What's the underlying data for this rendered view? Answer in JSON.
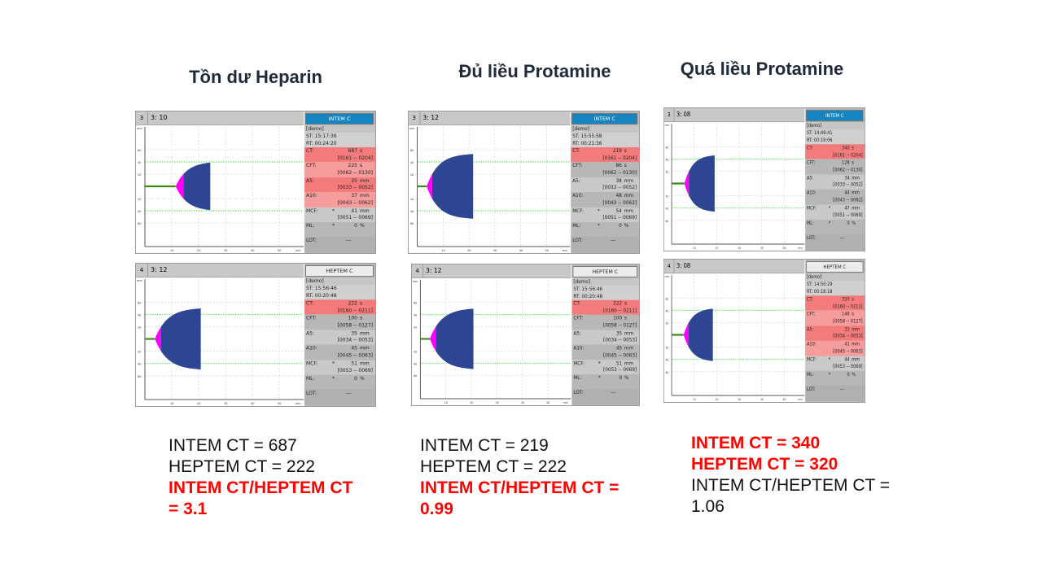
{
  "colors": {
    "highlight": "#ff0000",
    "intem_header": "#1485c0",
    "abnormal": "#f47b7b",
    "curve_blue": "#2e4593",
    "curve_magenta": "#ff00ff",
    "baseline_green": "#3b8a1c",
    "ref_line": "#33dd33"
  },
  "axis": {
    "y_unit": "mm",
    "y_ticks": [
      "60",
      "40",
      "20",
      "20",
      "40",
      "60"
    ],
    "x_ticks": [
      "10",
      "20",
      "30",
      "40",
      "50"
    ],
    "x_unit": "min"
  },
  "columns": [
    {
      "title": "Tồn dư Heparin",
      "panels": [
        {
          "channel": "3",
          "run": "3: 10",
          "test": "INTEM C",
          "type": "intem",
          "demo": "[demo]",
          "st": "ST: 15:17:36",
          "rt": "RT: 00:24:20",
          "rt_min": 24.33,
          "params": [
            {
              "label": "CT:",
              "value": "687",
              "unit": "s",
              "range": "[0161 -- 0204]",
              "abnormal": true,
              "star": ""
            },
            {
              "label": "CFT:",
              "value": "225",
              "unit": "s",
              "range": "[0062 -- 0130]",
              "abnormal": true,
              "star": ""
            },
            {
              "label": "A5:",
              "value": "25",
              "unit": "mm",
              "range": "[0033 -- 0052]",
              "abnormal": true,
              "star": ""
            },
            {
              "label": "A10:",
              "value": "37",
              "unit": "mm",
              "range": "[0043 -- 0062]",
              "abnormal": true,
              "star": ""
            },
            {
              "label": "MCF:",
              "value": "41",
              "unit": "mm",
              "range": "[0051 -- 0069]",
              "abnormal": false,
              "star": "*"
            },
            {
              "label": "ML:",
              "value": "0",
              "unit": "%",
              "range": "",
              "abnormal": false,
              "star": "*"
            }
          ],
          "lot_label": "LOT:",
          "lot_value": "---"
        },
        {
          "channel": "4",
          "run": "3: 12",
          "test": "HEPTEM C",
          "type": "heptem",
          "demo": "[demo]",
          "st": "ST: 15:56:46",
          "rt": "RT: 00:20:48",
          "rt_min": 20.8,
          "params": [
            {
              "label": "CT:",
              "value": "222",
              "unit": "s",
              "range": "[0160 -- 0211]",
              "abnormal": true,
              "star": ""
            },
            {
              "label": "CFT:",
              "value": "100",
              "unit": "s",
              "range": "[0058 -- 0127]",
              "abnormal": false,
              "star": ""
            },
            {
              "label": "A5:",
              "value": "35",
              "unit": "mm",
              "range": "[0034 -- 0053]",
              "abnormal": false,
              "star": ""
            },
            {
              "label": "A10:",
              "value": "45",
              "unit": "mm",
              "range": "[0045 -- 0063]",
              "abnormal": false,
              "star": ""
            },
            {
              "label": "MCF:",
              "value": "51",
              "unit": "mm",
              "range": "[0053 -- 0069]",
              "abnormal": false,
              "star": "*"
            },
            {
              "label": "ML:",
              "value": "0",
              "unit": "%",
              "range": "",
              "abnormal": false,
              "star": "*"
            }
          ],
          "lot_label": "LOT:",
          "lot_value": "---"
        }
      ],
      "results": [
        {
          "text": "INTEM CT = 687",
          "hl": false
        },
        {
          "text": "HEPTEM CT = 222",
          "hl": false
        },
        {
          "text": "INTEM CT/HEPTEM CT",
          "hl": true
        },
        {
          "text": "= 3.1",
          "hl": true
        }
      ]
    },
    {
      "title": "Đủ liều Protamine",
      "panels": [
        {
          "channel": "3",
          "run": "3: 12",
          "test": "INTEM C",
          "type": "intem",
          "demo": "[demo]",
          "st": "ST: 15:55:58",
          "rt": "RT: 00:21:36",
          "rt_min": 21.6,
          "params": [
            {
              "label": "CT:",
              "value": "219",
              "unit": "s",
              "range": "[0161 -- 0204]",
              "abnormal": true,
              "star": ""
            },
            {
              "label": "CFT:",
              "value": "86",
              "unit": "s",
              "range": "[0062 -- 0130]",
              "abnormal": false,
              "star": ""
            },
            {
              "label": "A5:",
              "value": "38",
              "unit": "mm",
              "range": "[0033 -- 0052]",
              "abnormal": false,
              "star": ""
            },
            {
              "label": "A10:",
              "value": "48",
              "unit": "mm",
              "range": "[0043 -- 0062]",
              "abnormal": false,
              "star": ""
            },
            {
              "label": "MCF:",
              "value": "54",
              "unit": "mm",
              "range": "[0051 -- 0069]",
              "abnormal": false,
              "star": "*"
            },
            {
              "label": "ML:",
              "value": "0",
              "unit": "%",
              "range": "",
              "abnormal": false,
              "star": "*"
            }
          ],
          "lot_label": "LOT:",
          "lot_value": "---"
        },
        {
          "channel": "4",
          "run": "3: 12",
          "test": "HEPTEM C",
          "type": "heptem",
          "demo": "[demo]",
          "st": "ST: 15:56:46",
          "rt": "RT: 00:20:48",
          "rt_min": 20.8,
          "params": [
            {
              "label": "CT:",
              "value": "222",
              "unit": "s",
              "range": "[0160 -- 0211]",
              "abnormal": true,
              "star": ""
            },
            {
              "label": "CFT:",
              "value": "100",
              "unit": "s",
              "range": "[0058 -- 0127]",
              "abnormal": false,
              "star": ""
            },
            {
              "label": "A5:",
              "value": "35",
              "unit": "mm",
              "range": "[0034 -- 0053]",
              "abnormal": false,
              "star": ""
            },
            {
              "label": "A10:",
              "value": "45",
              "unit": "mm",
              "range": "[0045 -- 0063]",
              "abnormal": false,
              "star": ""
            },
            {
              "label": "MCF:",
              "value": "51",
              "unit": "mm",
              "range": "[0053 -- 0069]",
              "abnormal": false,
              "star": "*"
            },
            {
              "label": "ML:",
              "value": "0",
              "unit": "%",
              "range": "",
              "abnormal": false,
              "star": "*"
            }
          ],
          "lot_label": "LOT:",
          "lot_value": "---"
        }
      ],
      "results": [
        {
          "text": "INTEM CT = 219",
          "hl": false
        },
        {
          "text": "HEPTEM CT = 222",
          "hl": false
        },
        {
          "text": "INTEM CT/HEPTEM CT =",
          "hl": true
        },
        {
          "text": "0.99",
          "hl": true
        }
      ]
    },
    {
      "title": "Quá liều Protamine",
      "panels": [
        {
          "channel": "3",
          "run": "3: 08",
          "test": "INTEM C",
          "type": "intem",
          "demo": "[demo]",
          "st": "ST: 14:49:41",
          "rt": "RT: 00:19:06",
          "rt_min": 19.1,
          "params": [
            {
              "label": "CT:",
              "value": "340",
              "unit": "s",
              "range": "[0161 -- 0204]",
              "abnormal": true,
              "star": ""
            },
            {
              "label": "CFT:",
              "value": "128",
              "unit": "s",
              "range": "[0062 -- 0130]",
              "abnormal": false,
              "star": ""
            },
            {
              "label": "A5:",
              "value": "34",
              "unit": "mm",
              "range": "[0033 -- 0052]",
              "abnormal": false,
              "star": ""
            },
            {
              "label": "A10:",
              "value": "44",
              "unit": "mm",
              "range": "[0043 -- 0062]",
              "abnormal": false,
              "star": ""
            },
            {
              "label": "MCF:",
              "value": "47",
              "unit": "mm",
              "range": "[0051 -- 0069]",
              "abnormal": false,
              "star": "*"
            },
            {
              "label": "ML:",
              "value": "0",
              "unit": "%",
              "range": "",
              "abnormal": false,
              "star": "*"
            }
          ],
          "lot_label": "LOT:",
          "lot_value": "---"
        },
        {
          "channel": "4",
          "run": "3: 08",
          "test": "HEPTEM C",
          "type": "heptem",
          "demo": "[demo]",
          "st": "ST: 14:50:29",
          "rt": "RT: 00:18:18",
          "rt_min": 18.3,
          "params": [
            {
              "label": "CT:",
              "value": "320",
              "unit": "s",
              "range": "[0160 -- 0211]",
              "abnormal": true,
              "star": ""
            },
            {
              "label": "CFT:",
              "value": "146",
              "unit": "s",
              "range": "[0058 -- 0127]",
              "abnormal": true,
              "star": ""
            },
            {
              "label": "A5:",
              "value": "31",
              "unit": "mm",
              "range": "[0034 -- 0053]",
              "abnormal": true,
              "star": ""
            },
            {
              "label": "A10:",
              "value": "41",
              "unit": "mm",
              "range": "[0045 -- 0063]",
              "abnormal": true,
              "star": ""
            },
            {
              "label": "MCF:",
              "value": "44",
              "unit": "mm",
              "range": "[0053 -- 0069]",
              "abnormal": false,
              "star": "*"
            },
            {
              "label": "ML:",
              "value": "0",
              "unit": "%",
              "range": "",
              "abnormal": false,
              "star": "*"
            }
          ],
          "lot_label": "LOT:",
          "lot_value": "---"
        }
      ],
      "results": [
        {
          "text": "INTEM CT = 340",
          "hl": true
        },
        {
          "text": "HEPTEM CT = 320",
          "hl": true
        },
        {
          "text": "INTEM CT/HEPTEM CT =",
          "hl": false
        },
        {
          "text": "1.06",
          "hl": false
        }
      ]
    }
  ]
}
